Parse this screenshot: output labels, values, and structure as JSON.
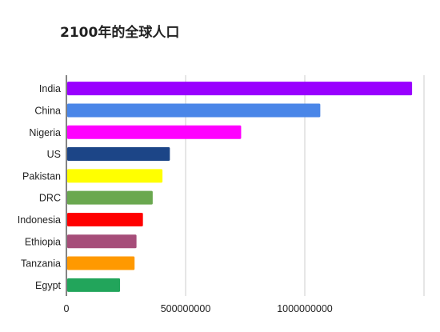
{
  "chart_data": {
    "type": "bar",
    "orientation": "horizontal",
    "title": "2100年的全球人口",
    "xlabel": "",
    "ylabel": "",
    "categories": [
      "India",
      "China",
      "Nigeria",
      "US",
      "Pakistan",
      "DRC",
      "Indonesia",
      "Ethiopia",
      "Tanzania",
      "Egypt"
    ],
    "values": [
      1450000000,
      1065000000,
      733000000,
      434000000,
      403000000,
      362000000,
      321000000,
      294000000,
      286000000,
      225000000
    ],
    "colors": [
      "#9900ff",
      "#4a86e8",
      "#ff00ff",
      "#1c4587",
      "#ffff00",
      "#6aa84f",
      "#ff0000",
      "#a64d79",
      "#ff9900",
      "#22a55b"
    ],
    "xlim": [
      0,
      1500000000
    ],
    "xticks": [
      0,
      500000000,
      1000000000
    ],
    "xtick_labels": [
      "0",
      "500000000",
      "1000000000"
    ],
    "grid": true,
    "legend": false
  }
}
